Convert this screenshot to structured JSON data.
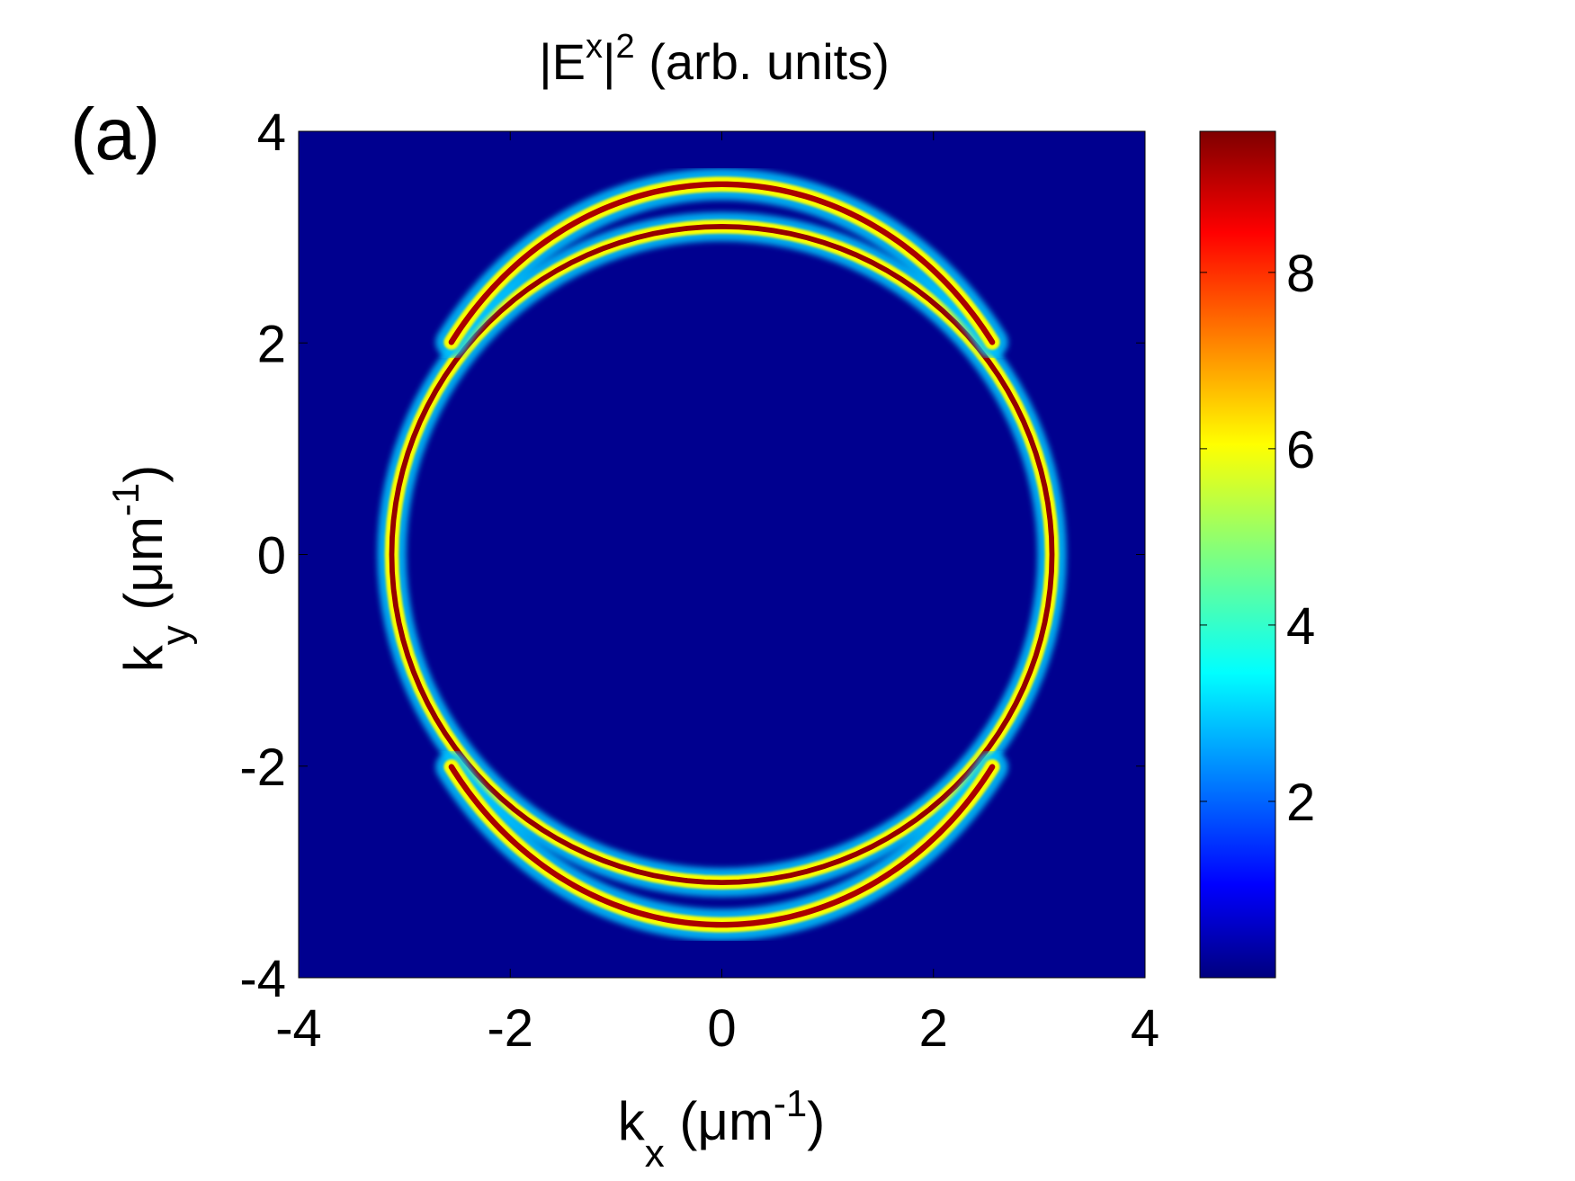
{
  "panel_label": "(a)",
  "chart_data": {
    "type": "heatmap",
    "title": {
      "base": "|E",
      "sup1": "x",
      "mid": "|",
      "sup2": "2",
      "tail": " (arb. units)"
    },
    "xlabel": {
      "base": "k",
      "sub": "x",
      "unit_open": " (μm",
      "sup": "-1",
      "unit_close": ")"
    },
    "ylabel": {
      "base": "k",
      "sub": "y",
      "unit_open": " (μm",
      "sup": "-1",
      "unit_close": ")"
    },
    "xlim": [
      -4,
      4
    ],
    "ylim": [
      -4,
      4
    ],
    "xticks": [
      -4,
      -2,
      0,
      2,
      4
    ],
    "yticks": [
      -4,
      -2,
      0,
      2,
      4
    ],
    "xtick_labels": [
      "-4",
      "-2",
      "0",
      "2",
      "4"
    ],
    "ytick_labels": [
      "-4",
      "-2",
      "0",
      "2",
      "4"
    ],
    "colorbar": {
      "colormap": "jet",
      "range": [
        0,
        9.6
      ],
      "ticks": [
        2,
        4,
        6,
        8
      ],
      "tick_labels": [
        "2",
        "4",
        "6",
        "8"
      ]
    },
    "rings": [
      {
        "name": "",
        "cx": 0,
        "cy": 0,
        "rx": 3.12,
        "ry": 3.1,
        "peak": 9.4,
        "width": 0.055,
        "span_deg": [
          0,
          360
        ]
      },
      {
        "name": "",
        "cx": 0,
        "cy": 0,
        "rx": 3.12,
        "ry": 3.5,
        "peak": 9.2,
        "width": 0.06,
        "span_deg": [
          35,
          145
        ]
      },
      {
        "name": "",
        "cx": 0,
        "cy": 0,
        "rx": 3.12,
        "ry": 3.5,
        "peak": 9.2,
        "width": 0.06,
        "span_deg": [
          215,
          325
        ]
      }
    ]
  }
}
